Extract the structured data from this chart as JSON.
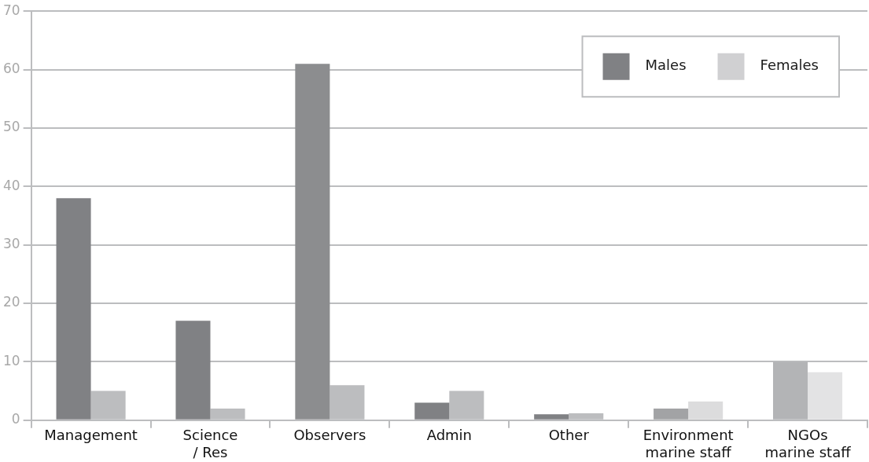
{
  "chart_data": {
    "type": "bar",
    "categories": [
      "Management",
      "Science / Res",
      "Observers",
      "Admin",
      "Other",
      "Environment marine staff",
      "NGOs marine staff"
    ],
    "series": [
      {
        "name": "Males",
        "color": "#808184",
        "colors": [
          "#808184",
          "#808184",
          "#8c8d8f",
          "#808184",
          "#808184",
          "#a2a3a5",
          "#b3b4b6"
        ],
        "values": [
          38,
          17,
          61,
          3,
          1,
          2,
          10
        ]
      },
      {
        "name": "Females",
        "color": "#d0d0d2",
        "colors": [
          "#bcbdbf",
          "#bcbdbf",
          "#bcbdbf",
          "#bcbdbf",
          "#bcbdbf",
          "#dcdcdd",
          "#e3e3e4"
        ],
        "values": [
          5,
          2,
          6,
          5,
          1.2,
          3.2,
          8.2
        ]
      }
    ],
    "ylim": [
      0,
      70
    ],
    "yticks": [
      0,
      10,
      20,
      30,
      40,
      50,
      60,
      70
    ],
    "grid": "y",
    "legend": "top right"
  }
}
